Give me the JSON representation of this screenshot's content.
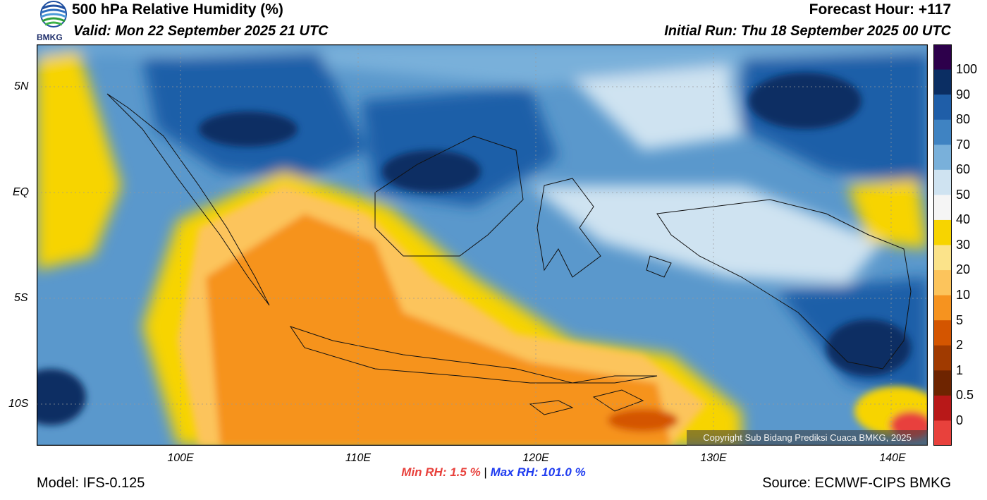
{
  "header": {
    "title": "500 hPa Relative Humidity (%)",
    "valid": "Valid: Mon 22 September 2025 21 UTC",
    "forecast_hour": "Forecast Hour: +117",
    "initial_run": "Initial Run: Thu 18 September 2025 00 UTC",
    "logo_text": "BMKG"
  },
  "axes": {
    "lat_labels": [
      "5N",
      "EQ",
      "5S",
      "10S"
    ],
    "lon_labels": [
      "100E",
      "110E",
      "120E",
      "130E",
      "140E"
    ]
  },
  "colorbar": {
    "labels": [
      "100",
      "90",
      "80",
      "70",
      "60",
      "50",
      "40",
      "30",
      "20",
      "10",
      "5",
      "2",
      "1",
      "0.5",
      "0"
    ],
    "colors": [
      "#2d004b",
      "#0b2e63",
      "#1f5ea8",
      "#3f83c2",
      "#79b0da",
      "#cfe3f1",
      "#f5f5f5",
      "#f7d400",
      "#fbe38a",
      "#fcc45c",
      "#f6931f",
      "#d45500",
      "#a03a00",
      "#6e2400",
      "#b81818",
      "#e8413c"
    ]
  },
  "stats": {
    "min_label": "Min RH:   1.5 %",
    "separator": "|",
    "max_label": "Max RH: 101.0 %"
  },
  "footer": {
    "model": "Model: IFS-0.125",
    "source": "Source: ECMWF-CIPS BMKG",
    "copyright": "Copyright Sub Bidang Prediksi Cuaca BMKG, 2025"
  }
}
